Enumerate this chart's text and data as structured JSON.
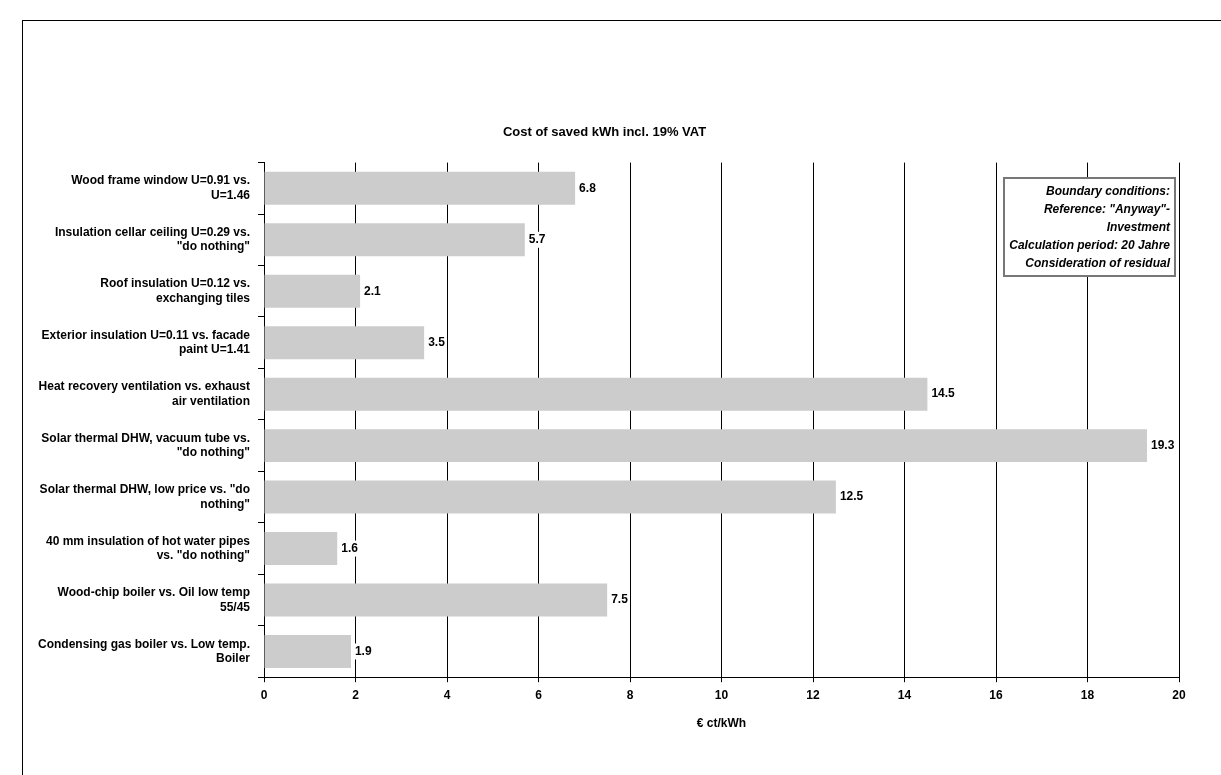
{
  "chart_data": {
    "type": "bar",
    "orientation": "horizontal",
    "title": "Cost of saved kWh incl. 19% VAT",
    "xlabel": "€ ct/kWh",
    "categories": [
      "Wood frame window U=0.91 vs. U=1.46",
      "Insulation cellar ceiling U=0.29 vs. \"do nothing\"",
      "Roof insulation U=0.12 vs. exchanging tiles",
      "Exterior insulation U=0.11 vs. facade paint U=1.41",
      "Heat recovery ventilation vs. exhaust air ventilation",
      "Solar thermal DHW, vacuum tube vs. \"do nothing\"",
      "Solar thermal DHW, low price vs. \"do nothing\"",
      "40 mm insulation of hot water pipes vs. \"do nothing\"",
      "Wood-chip boiler vs. Oil low temp 55/45",
      "Condensing gas boiler vs. Low temp. Boiler"
    ],
    "values": [
      6.8,
      5.7,
      2.1,
      3.5,
      14.5,
      19.3,
      12.5,
      1.6,
      7.5,
      1.9
    ],
    "color": "#cccccc",
    "xlim": [
      0,
      20
    ],
    "xticks": [
      0,
      2,
      4,
      6,
      8,
      10,
      12,
      14,
      16,
      18,
      20
    ],
    "grid": "x",
    "legend": false,
    "data_labels": true,
    "annotations": [
      "Boundary conditions:\nReference: \"Anyway\"-\nInvestment\nCalculation period: 20 Jahre\nConsideration of residual"
    ]
  }
}
